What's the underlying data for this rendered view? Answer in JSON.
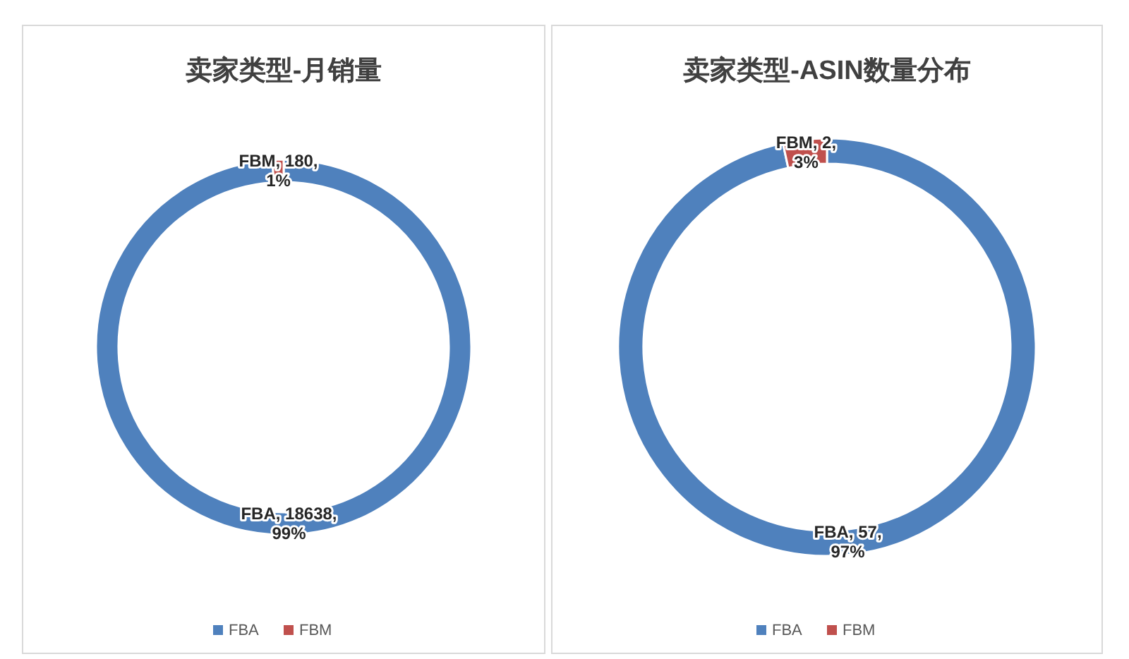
{
  "chart_data": [
    {
      "type": "donut",
      "title": "卖家类型-月销量",
      "categories": [
        "FBA",
        "FBM"
      ],
      "values": [
        18638,
        180
      ],
      "colors": [
        "#4f81bd",
        "#c0504d"
      ],
      "value_labels": [
        "FBA, 18638, 99%",
        "FBM, 180, 1%"
      ],
      "legend": "bottom"
    },
    {
      "type": "donut",
      "title": "卖家类型-ASIN数量分布",
      "categories": [
        "FBA",
        "FBM"
      ],
      "values": [
        57,
        2
      ],
      "colors": [
        "#4f81bd",
        "#c0504d"
      ],
      "value_labels": [
        "FBA, 57, 97%",
        "FBM, 2, 3%"
      ],
      "legend": "bottom"
    }
  ]
}
